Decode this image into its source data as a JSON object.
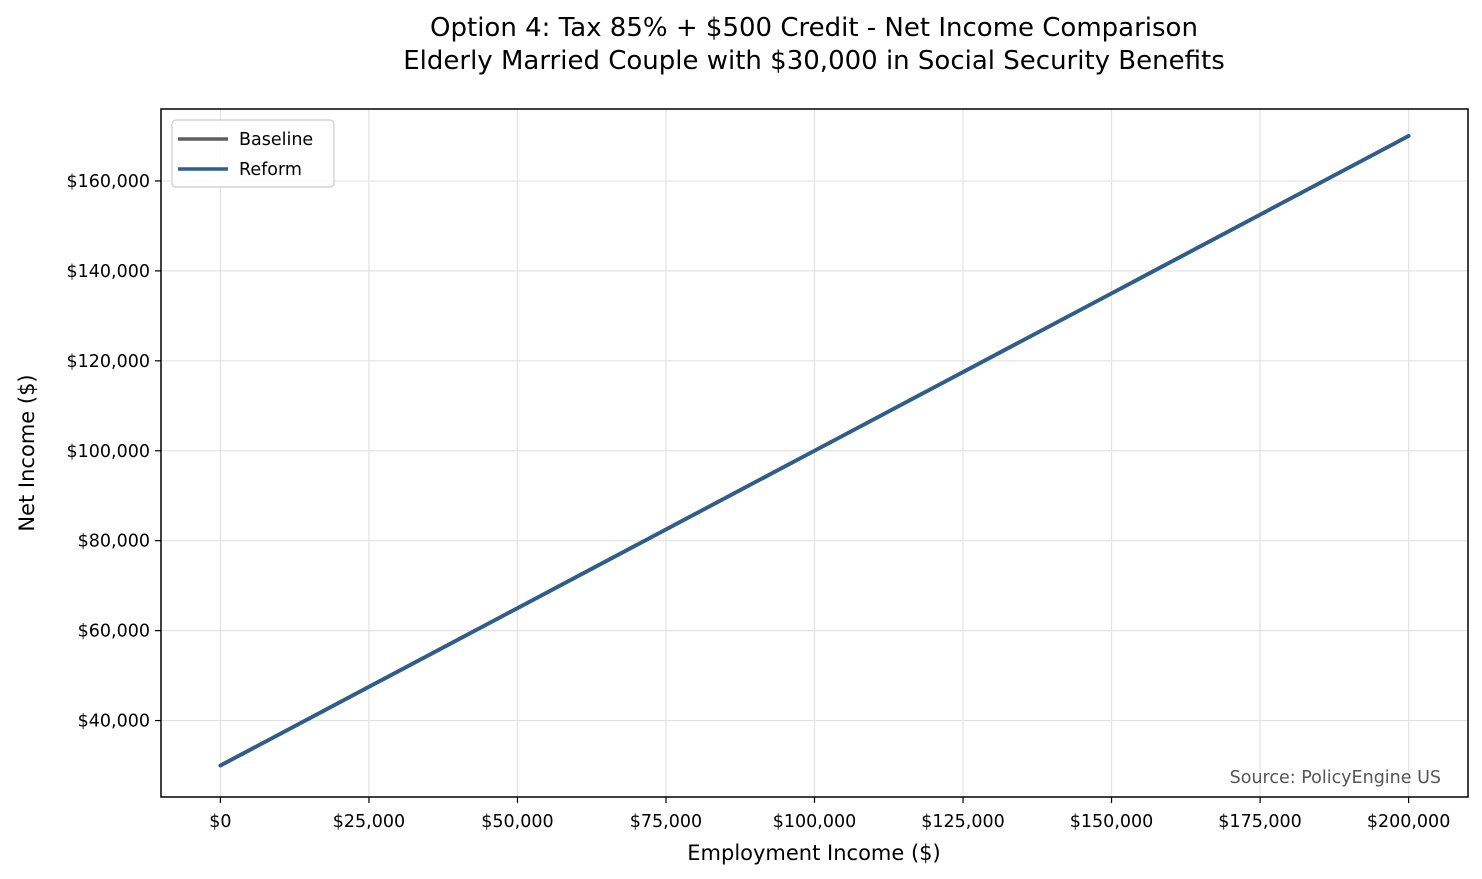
{
  "chart_data": {
    "type": "line",
    "title_line1": "Option 4: Tax 85% + $500 Credit - Net Income Comparison",
    "title_line2": "Elderly Married Couple with $30,000 in Social Security Benefits",
    "xlabel": "Employment Income ($)",
    "ylabel": "Net Income ($)",
    "xlim": [
      -10000,
      210000
    ],
    "ylim": [
      23000,
      176000
    ],
    "x_ticks": [
      0,
      25000,
      50000,
      75000,
      100000,
      125000,
      150000,
      175000,
      200000
    ],
    "x_tick_labels": [
      "$0",
      "$25,000",
      "$50,000",
      "$75,000",
      "$100,000",
      "$125,000",
      "$150,000",
      "$175,000",
      "$200,000"
    ],
    "y_ticks": [
      40000,
      60000,
      80000,
      100000,
      120000,
      140000,
      160000
    ],
    "y_tick_labels": [
      "$40,000",
      "$60,000",
      "$80,000",
      "$100,000",
      "$120,000",
      "$140,000",
      "$160,000"
    ],
    "grid": true,
    "legend_position": "top-left",
    "series": [
      {
        "name": "Baseline",
        "color": "#5f5f5f",
        "x": [
          0,
          25000,
          50000,
          75000,
          100000,
          125000,
          150000,
          175000,
          200000
        ],
        "y": [
          30000,
          47500,
          65000,
          82500,
          100000,
          117500,
          135000,
          152500,
          170000
        ]
      },
      {
        "name": "Reform",
        "color": "#2f5d8c",
        "x": [
          0,
          25000,
          50000,
          75000,
          100000,
          125000,
          150000,
          175000,
          200000
        ],
        "y": [
          30000,
          47500,
          65000,
          82500,
          100000,
          117500,
          135000,
          152500,
          170000
        ]
      }
    ],
    "annotation": "Source: PolicyEngine US"
  }
}
